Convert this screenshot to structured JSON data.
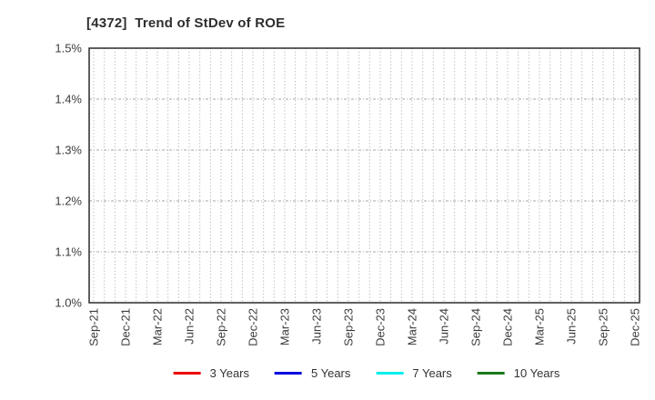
{
  "chart_data": {
    "type": "line",
    "title": "[4372]  Trend of StDev of ROE",
    "xlabel": "",
    "ylabel": "",
    "x_tick_labels": [
      "Sep-21",
      "Dec-21",
      "Mar-22",
      "Jun-22",
      "Sep-22",
      "Dec-22",
      "Mar-23",
      "Jun-23",
      "Sep-23",
      "Dec-23",
      "Mar-24",
      "Jun-24",
      "Sep-24",
      "Dec-24",
      "Mar-25",
      "Jun-25",
      "Sep-25",
      "Dec-25"
    ],
    "x_tick_interval_months": 3,
    "x_total_months": 51,
    "y_tick_labels": [
      "1.0%",
      "1.1%",
      "1.2%",
      "1.3%",
      "1.4%",
      "1.5%"
    ],
    "y_tick_values": [
      1.0,
      1.1,
      1.2,
      1.3,
      1.4,
      1.5
    ],
    "ylim": [
      1.0,
      1.5
    ],
    "y_unit": "%",
    "grid": true,
    "legend_position": "bottom",
    "series": [
      {
        "name": "3 Years",
        "color": "#ee0000",
        "values": []
      },
      {
        "name": "5 Years",
        "color": "#0000dd",
        "values": []
      },
      {
        "name": "7 Years",
        "color": "#00eeee",
        "values": []
      },
      {
        "name": "10 Years",
        "color": "#1a7a1a",
        "values": []
      }
    ],
    "colors": {
      "axis_border": "#2b2b2b",
      "grid": "#a6a6a6",
      "tick_text": "#3c3c3c",
      "title_text": "#2e2e2e",
      "background": "#ffffff"
    }
  }
}
